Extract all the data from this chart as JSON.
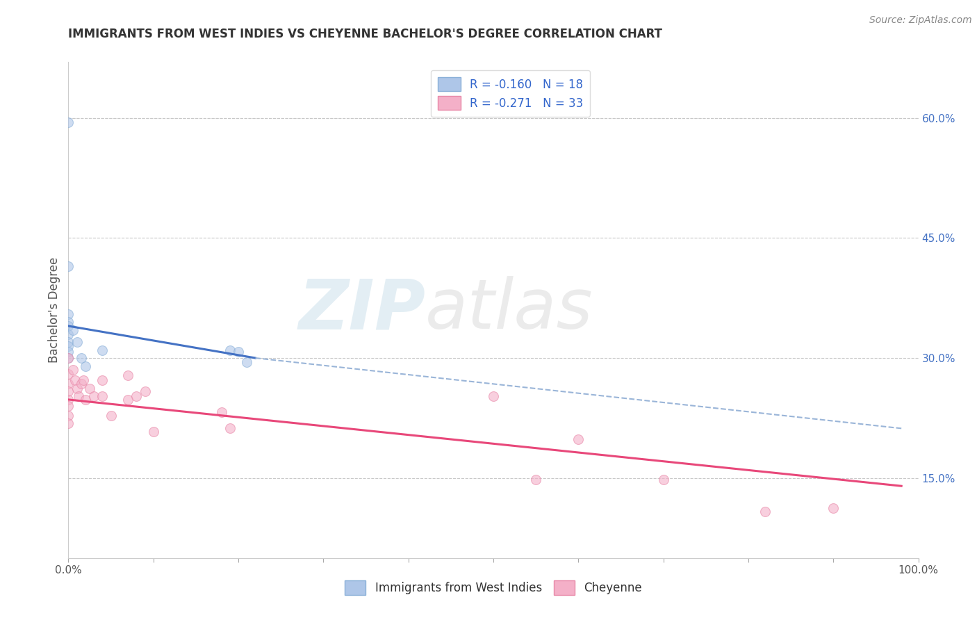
{
  "title": "IMMIGRANTS FROM WEST INDIES VS CHEYENNE BACHELOR'S DEGREE CORRELATION CHART",
  "source": "Source: ZipAtlas.com",
  "ylabel": "Bachelor's Degree",
  "xlim": [
    0,
    1.0
  ],
  "ylim": [
    0.05,
    0.67
  ],
  "yticks_right": [
    0.15,
    0.3,
    0.45,
    0.6
  ],
  "ytick_right_labels": [
    "15.0%",
    "30.0%",
    "45.0%",
    "60.0%"
  ],
  "watermark_zip": "ZIP",
  "watermark_atlas": "atlas",
  "blue_scatter": [
    [
      0.0,
      0.595
    ],
    [
      0.0,
      0.415
    ],
    [
      0.0,
      0.355
    ],
    [
      0.0,
      0.345
    ],
    [
      0.0,
      0.34
    ],
    [
      0.0,
      0.33
    ],
    [
      0.0,
      0.32
    ],
    [
      0.0,
      0.315
    ],
    [
      0.0,
      0.308
    ],
    [
      0.0,
      0.3
    ],
    [
      0.005,
      0.335
    ],
    [
      0.01,
      0.32
    ],
    [
      0.015,
      0.3
    ],
    [
      0.02,
      0.29
    ],
    [
      0.04,
      0.31
    ],
    [
      0.19,
      0.31
    ],
    [
      0.2,
      0.308
    ],
    [
      0.21,
      0.295
    ]
  ],
  "pink_scatter": [
    [
      0.0,
      0.3
    ],
    [
      0.0,
      0.28
    ],
    [
      0.0,
      0.268
    ],
    [
      0.0,
      0.258
    ],
    [
      0.0,
      0.248
    ],
    [
      0.0,
      0.24
    ],
    [
      0.0,
      0.228
    ],
    [
      0.0,
      0.218
    ],
    [
      0.005,
      0.285
    ],
    [
      0.008,
      0.272
    ],
    [
      0.01,
      0.262
    ],
    [
      0.012,
      0.252
    ],
    [
      0.015,
      0.268
    ],
    [
      0.018,
      0.272
    ],
    [
      0.02,
      0.248
    ],
    [
      0.025,
      0.262
    ],
    [
      0.03,
      0.252
    ],
    [
      0.04,
      0.272
    ],
    [
      0.04,
      0.252
    ],
    [
      0.05,
      0.228
    ],
    [
      0.07,
      0.278
    ],
    [
      0.07,
      0.248
    ],
    [
      0.08,
      0.252
    ],
    [
      0.09,
      0.258
    ],
    [
      0.1,
      0.208
    ],
    [
      0.18,
      0.232
    ],
    [
      0.19,
      0.212
    ],
    [
      0.5,
      0.252
    ],
    [
      0.55,
      0.148
    ],
    [
      0.6,
      0.198
    ],
    [
      0.7,
      0.148
    ],
    [
      0.82,
      0.108
    ],
    [
      0.9,
      0.112
    ]
  ],
  "blue_solid_line": [
    [
      0.0,
      0.34
    ],
    [
      0.22,
      0.3
    ]
  ],
  "blue_dashed_line": [
    [
      0.22,
      0.3
    ],
    [
      0.98,
      0.212
    ]
  ],
  "pink_solid_line": [
    [
      0.0,
      0.248
    ],
    [
      0.98,
      0.14
    ]
  ],
  "bg_color": "#ffffff",
  "grid_color": "#c8c8c8",
  "scatter_alpha": 0.6,
  "scatter_size": 100,
  "title_fontsize": 12,
  "source_fontsize": 10,
  "label_fontsize": 12,
  "tick_fontsize": 11,
  "legend_fontsize": 12
}
